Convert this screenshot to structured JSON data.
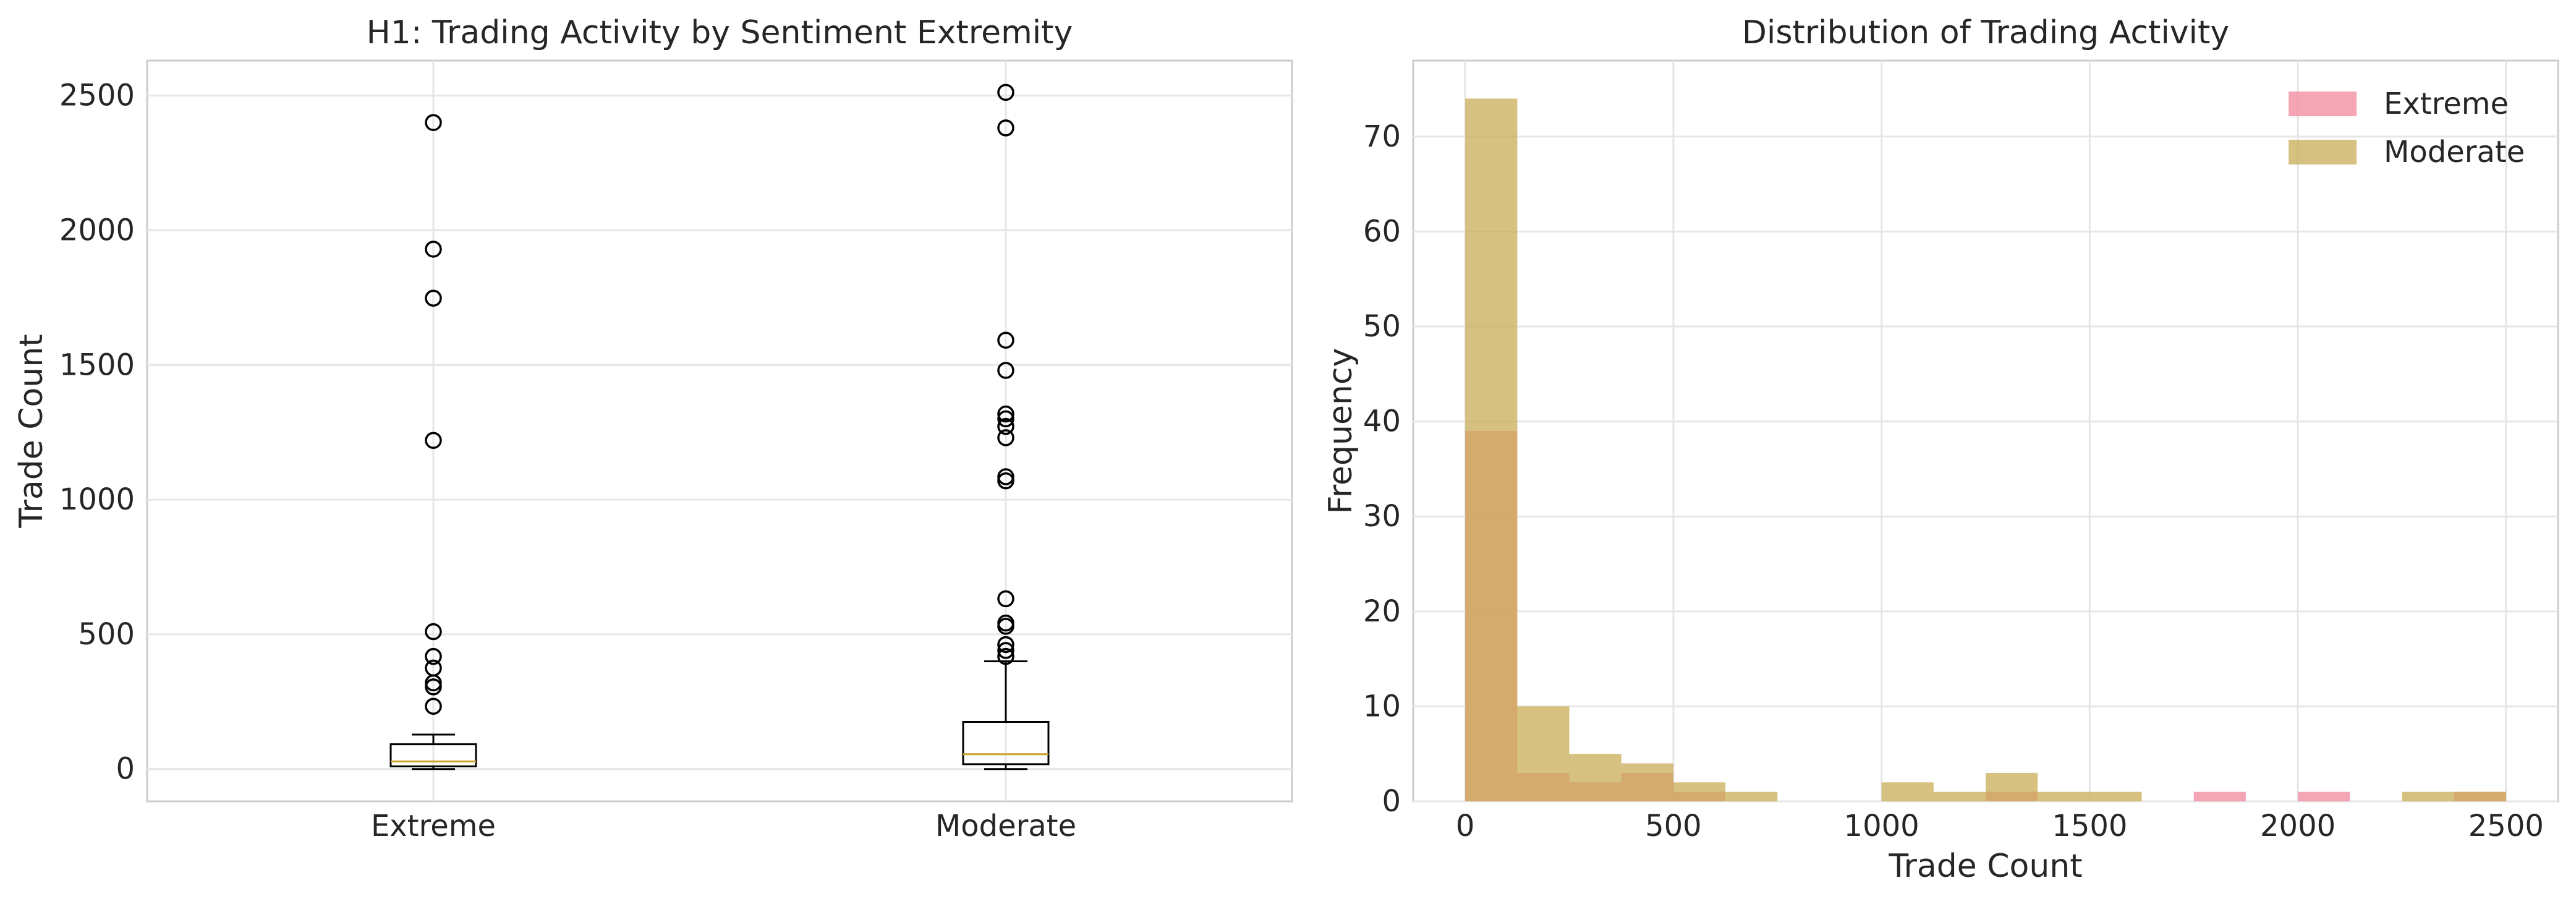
{
  "chart_data": [
    {
      "type": "box",
      "title": "H1: Trading Activity by Sentiment Extremity",
      "xlabel": "",
      "ylabel": "Trade Count",
      "categories": [
        "Extreme",
        "Moderate"
      ],
      "ylim": [
        -120,
        2630
      ],
      "yticks": [
        0,
        500,
        1000,
        1500,
        2000,
        2500
      ],
      "grid": true,
      "median_color": "#c9a227",
      "boxes": [
        {
          "category": "Extreme",
          "whisker_low": 0,
          "q1": 10,
          "median": 28,
          "q3": 92,
          "whisker_high": 128,
          "outliers": [
            233,
            305,
            320,
            375,
            418,
            510,
            1220,
            1748,
            1930,
            2400
          ]
        },
        {
          "category": "Moderate",
          "whisker_low": 0,
          "q1": 18,
          "median": 55,
          "q3": 175,
          "whisker_high": 400,
          "outliers": [
            418,
            440,
            462,
            530,
            542,
            632,
            1070,
            1085,
            1230,
            1272,
            1300,
            1318,
            1480,
            1592,
            2380,
            2512
          ]
        }
      ]
    },
    {
      "type": "histogram",
      "title": "Distribution of Trading Activity",
      "xlabel": "Trade Count",
      "ylabel": "Frequency",
      "xlim": [
        -125,
        2625
      ],
      "ylim": [
        0,
        78
      ],
      "xticks": [
        0,
        500,
        1000,
        1500,
        2000,
        2500
      ],
      "yticks": [
        0,
        10,
        20,
        30,
        40,
        50,
        60,
        70
      ],
      "grid": true,
      "legend_position": "top-right",
      "bin_edges": [
        0,
        125,
        250,
        375,
        500,
        625,
        750,
        875,
        1000,
        1125,
        1250,
        1375,
        1500,
        1625,
        1750,
        1875,
        2000,
        2125,
        2250,
        2375,
        2500
      ],
      "series": [
        {
          "name": "Extreme",
          "color": "#f2889c",
          "counts": [
            39,
            3,
            2,
            3,
            1,
            0,
            0,
            0,
            0,
            0,
            1,
            0,
            0,
            0,
            1,
            0,
            1,
            0,
            0,
            1
          ]
        },
        {
          "name": "Moderate",
          "color": "#c9ac55",
          "counts": [
            74,
            10,
            5,
            4,
            2,
            1,
            0,
            0,
            2,
            1,
            3,
            1,
            1,
            0,
            0,
            0,
            0,
            0,
            1,
            1
          ]
        }
      ]
    }
  ]
}
